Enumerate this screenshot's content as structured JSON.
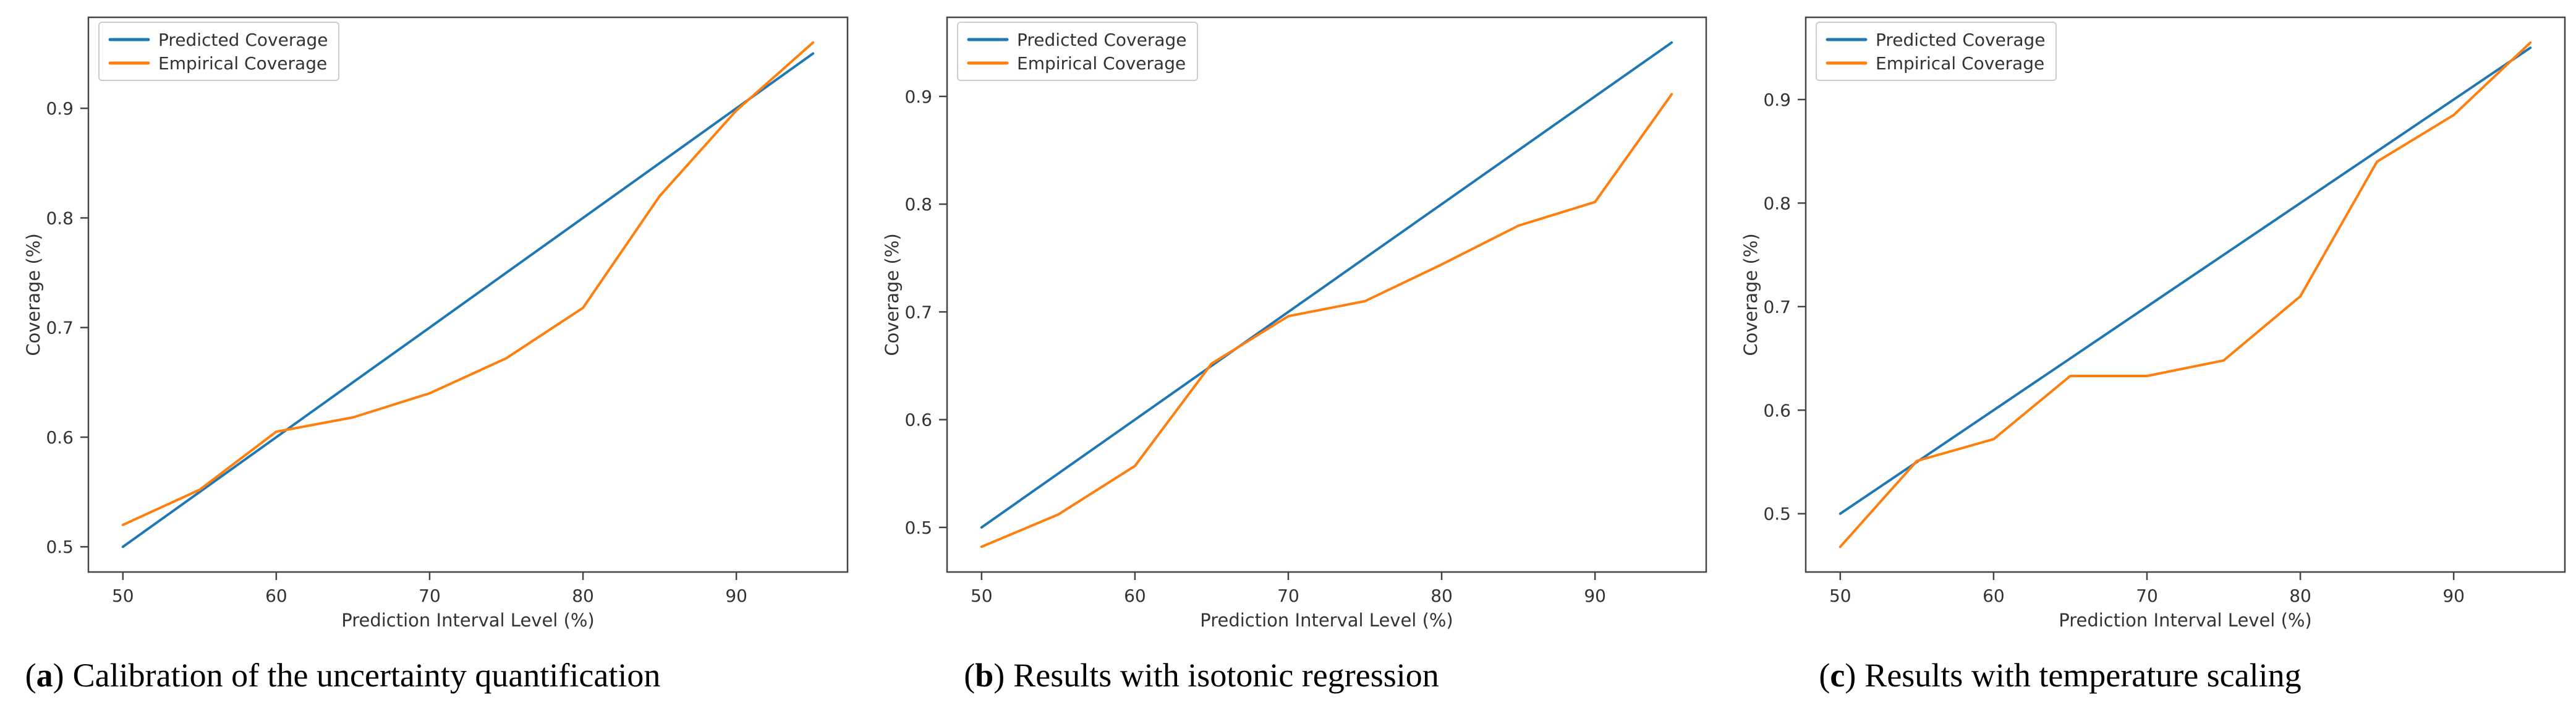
{
  "punctuation": {
    "open_paren": "(",
    "close_paren": ")"
  },
  "style": {
    "background": "#ffffff",
    "axis_color": "#454545",
    "text_color": "#333333",
    "legend_border_color": "#cccccc",
    "caption_color": "#000000",
    "predicted_color": "#1f77b4",
    "empirical_color": "#ff7f0e"
  },
  "chart_data": [
    {
      "id": "a",
      "type": "line",
      "letter": "a",
      "caption": "Calibration of the uncertainty quantification",
      "xlabel": "Prediction Interval Level (%)",
      "ylabel": "Coverage (%)",
      "legend_position": "upper left",
      "grid": false,
      "x": [
        50,
        55,
        60,
        65,
        70,
        75,
        80,
        85,
        90,
        95
      ],
      "x_ticks": [
        50,
        60,
        70,
        80,
        90
      ],
      "y_ticks": [
        0.5,
        0.6,
        0.7,
        0.8,
        0.9
      ],
      "xlim": [
        47.75,
        97.25
      ],
      "ylim": [
        0.477,
        0.983
      ],
      "series": [
        {
          "name": "Predicted Coverage",
          "color": "#1f77b4",
          "values": [
            0.5,
            0.55,
            0.6,
            0.65,
            0.7,
            0.75,
            0.8,
            0.85,
            0.9,
            0.95
          ]
        },
        {
          "name": "Empirical Coverage",
          "color": "#ff7f0e",
          "values": [
            0.52,
            0.552,
            0.605,
            0.618,
            0.64,
            0.672,
            0.718,
            0.82,
            0.898,
            0.96
          ]
        }
      ]
    },
    {
      "id": "b",
      "type": "line",
      "letter": "b",
      "caption": "Results with isotonic regression",
      "xlabel": "Prediction Interval Level (%)",
      "ylabel": "Coverage (%)",
      "legend_position": "upper left",
      "grid": false,
      "x": [
        50,
        55,
        60,
        65,
        70,
        75,
        80,
        85,
        90,
        95
      ],
      "x_ticks": [
        50,
        60,
        70,
        80,
        90
      ],
      "y_ticks": [
        0.5,
        0.6,
        0.7,
        0.8,
        0.9
      ],
      "xlim": [
        47.75,
        97.25
      ],
      "ylim": [
        0.4586,
        0.9734
      ],
      "series": [
        {
          "name": "Predicted Coverage",
          "color": "#1f77b4",
          "values": [
            0.5,
            0.55,
            0.6,
            0.65,
            0.7,
            0.75,
            0.8,
            0.85,
            0.9,
            0.95
          ]
        },
        {
          "name": "Empirical Coverage",
          "color": "#ff7f0e",
          "values": [
            0.482,
            0.512,
            0.557,
            0.652,
            0.696,
            0.71,
            0.744,
            0.78,
            0.802,
            0.902
          ]
        }
      ]
    },
    {
      "id": "c",
      "type": "line",
      "letter": "c",
      "caption": "Results with temperature scaling",
      "xlabel": "Prediction Interval Level (%)",
      "ylabel": "Coverage (%)",
      "legend_position": "upper left",
      "grid": false,
      "x": [
        50,
        55,
        60,
        65,
        70,
        75,
        80,
        85,
        90,
        95
      ],
      "x_ticks": [
        50,
        60,
        70,
        80,
        90
      ],
      "y_ticks": [
        0.5,
        0.6,
        0.7,
        0.8,
        0.9
      ],
      "xlim": [
        47.75,
        97.25
      ],
      "ylim": [
        0.4437,
        0.9794
      ],
      "series": [
        {
          "name": "Predicted Coverage",
          "color": "#1f77b4",
          "values": [
            0.5,
            0.55,
            0.6,
            0.65,
            0.7,
            0.75,
            0.8,
            0.85,
            0.9,
            0.95
          ]
        },
        {
          "name": "Empirical Coverage",
          "color": "#ff7f0e",
          "values": [
            0.468,
            0.551,
            0.572,
            0.633,
            0.633,
            0.648,
            0.71,
            0.84,
            0.885,
            0.955
          ]
        }
      ]
    }
  ]
}
